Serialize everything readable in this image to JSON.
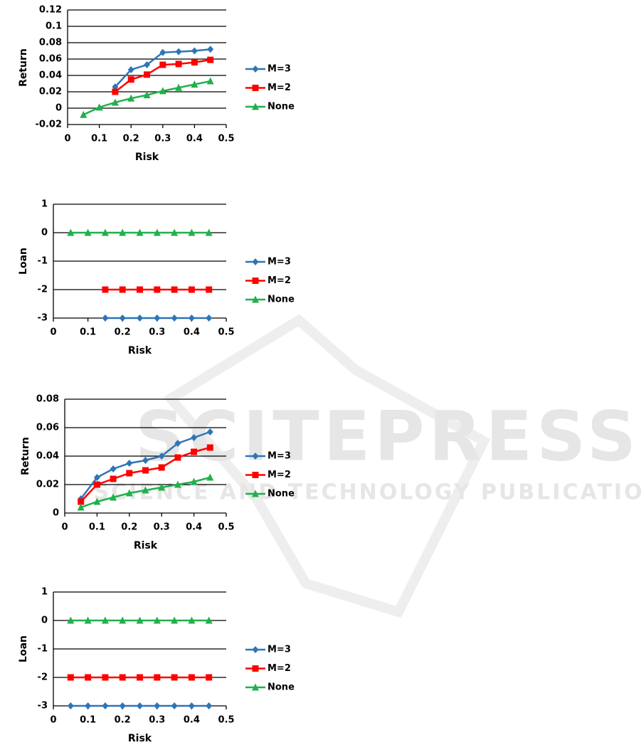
{
  "chart_data": [
    {
      "type": "line",
      "x_label": "Risk",
      "y_label": "Return",
      "x": [
        0.05,
        0.1,
        0.15,
        0.2,
        0.25,
        0.3,
        0.35,
        0.4,
        0.45
      ],
      "series": [
        {
          "name": "M=3",
          "color": "#2e75b6",
          "marker": "diamond",
          "values": [
            null,
            null,
            0.026,
            0.047,
            0.053,
            0.068,
            0.069,
            0.07,
            0.072
          ]
        },
        {
          "name": "M=2",
          "color": "#ff0000",
          "marker": "square",
          "values": [
            null,
            null,
            0.02,
            0.035,
            0.041,
            0.053,
            0.054,
            0.056,
            0.059
          ]
        },
        {
          "name": "None",
          "color": "#21b04b",
          "marker": "triangle",
          "values": [
            -0.008,
            0.001,
            0.007,
            0.012,
            0.016,
            0.021,
            0.025,
            0.029,
            0.033
          ]
        }
      ],
      "xlim": [
        0,
        0.5
      ],
      "xticks": [
        0,
        0.1,
        0.2,
        0.3,
        0.4,
        0.5
      ],
      "ylim": [
        -0.02,
        0.12
      ],
      "yticks": [
        -0.02,
        0,
        0.02,
        0.04,
        0.06,
        0.08,
        0.1,
        0.12
      ],
      "grid": true,
      "legend": "right"
    },
    {
      "type": "line",
      "x_label": "Risk",
      "y_label": "Loan",
      "x": [
        0.05,
        0.1,
        0.15,
        0.2,
        0.25,
        0.3,
        0.35,
        0.4,
        0.45
      ],
      "series": [
        {
          "name": "M=3",
          "color": "#2e75b6",
          "marker": "diamond",
          "values": [
            null,
            null,
            -3,
            -3,
            -3,
            -3,
            -3,
            -3,
            -3
          ]
        },
        {
          "name": "M=2",
          "color": "#ff0000",
          "marker": "square",
          "values": [
            null,
            null,
            -2,
            -2,
            -2,
            -2,
            -2,
            -2,
            -2
          ]
        },
        {
          "name": "None",
          "color": "#21b04b",
          "marker": "triangle",
          "values": [
            0,
            0,
            0,
            0,
            0,
            0,
            0,
            0,
            0
          ]
        }
      ],
      "xlim": [
        0,
        0.5
      ],
      "xticks": [
        0,
        0.1,
        0.2,
        0.3,
        0.4,
        0.5
      ],
      "ylim": [
        -3,
        1
      ],
      "yticks": [
        -3,
        -2,
        -1,
        0,
        1
      ],
      "grid": true,
      "legend": "right"
    },
    {
      "type": "line",
      "x_label": "Risk",
      "y_label": "Return",
      "x": [
        0.05,
        0.1,
        0.15,
        0.2,
        0.25,
        0.3,
        0.35,
        0.4,
        0.45
      ],
      "series": [
        {
          "name": "M=3",
          "color": "#2e75b6",
          "marker": "diamond",
          "values": [
            0.01,
            0.025,
            0.031,
            0.035,
            0.037,
            0.04,
            0.049,
            0.053,
            0.057
          ]
        },
        {
          "name": "M=2",
          "color": "#ff0000",
          "marker": "square",
          "values": [
            0.008,
            0.02,
            0.024,
            0.028,
            0.03,
            0.032,
            0.039,
            0.043,
            0.046
          ]
        },
        {
          "name": "None",
          "color": "#21b04b",
          "marker": "triangle",
          "values": [
            0.004,
            0.008,
            0.011,
            0.014,
            0.016,
            0.018,
            0.02,
            0.022,
            0.025
          ]
        }
      ],
      "xlim": [
        0,
        0.5
      ],
      "xticks": [
        0,
        0.1,
        0.2,
        0.3,
        0.4,
        0.5
      ],
      "ylim": [
        0,
        0.08
      ],
      "yticks": [
        0,
        0.02,
        0.04,
        0.06,
        0.08
      ],
      "grid": true,
      "legend": "right"
    },
    {
      "type": "line",
      "x_label": "Risk",
      "y_label": "Loan",
      "x": [
        0.05,
        0.1,
        0.15,
        0.2,
        0.25,
        0.3,
        0.35,
        0.4,
        0.45
      ],
      "series": [
        {
          "name": "M=3",
          "color": "#2e75b6",
          "marker": "diamond",
          "values": [
            -3,
            -3,
            -3,
            -3,
            -3,
            -3,
            -3,
            -3,
            -3
          ]
        },
        {
          "name": "M=2",
          "color": "#ff0000",
          "marker": "square",
          "values": [
            -2,
            -2,
            -2,
            -2,
            -2,
            -2,
            -2,
            -2,
            -2
          ]
        },
        {
          "name": "None",
          "color": "#21b04b",
          "marker": "triangle",
          "values": [
            0,
            0,
            0,
            0,
            0,
            0,
            0,
            0,
            0
          ]
        }
      ],
      "xlim": [
        0,
        0.5
      ],
      "xticks": [
        0,
        0.1,
        0.2,
        0.3,
        0.4,
        0.5
      ],
      "ylim": [
        -3,
        1
      ],
      "yticks": [
        -3,
        -2,
        -1,
        0,
        1
      ],
      "grid": true,
      "legend": "right"
    }
  ],
  "watermark": {
    "title": "SCITEPRESS",
    "subtitle": "SCIENCE AND TECHNOLOGY PUBLICATIONS"
  }
}
